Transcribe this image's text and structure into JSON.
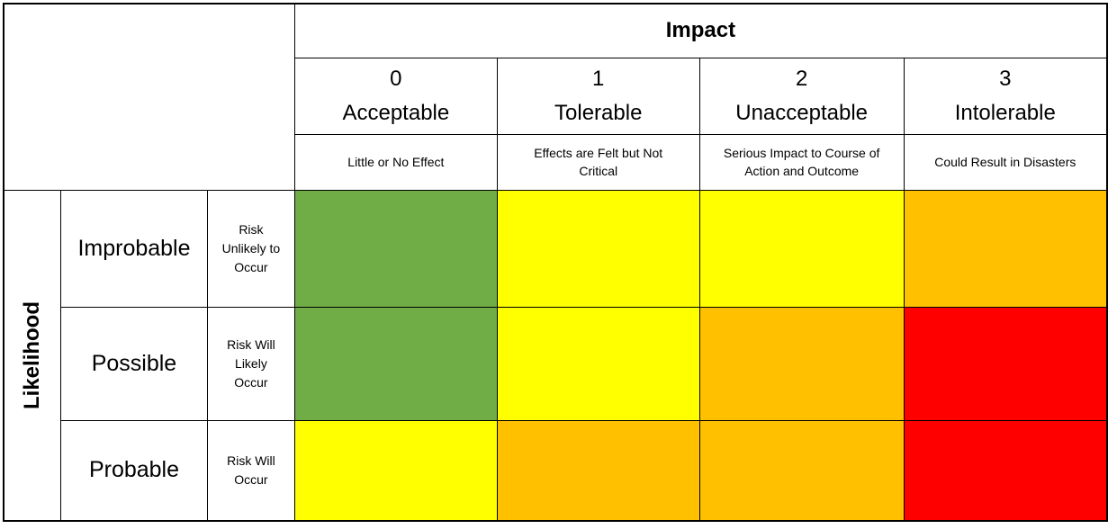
{
  "matrix": {
    "column_axis_label": "Impact",
    "row_axis_label": "Likelihood",
    "columns": [
      {
        "value": "0",
        "label": "Acceptable",
        "description": "Little or No Effect"
      },
      {
        "value": "1",
        "label": "Tolerable",
        "description": "Effects are Felt but Not\nCritical"
      },
      {
        "value": "2",
        "label": "Unacceptable",
        "description": "Serious Impact to Course of\nAction and Outcome"
      },
      {
        "value": "3",
        "label": "Intolerable",
        "description": "Could Result in Disasters"
      }
    ],
    "rows": [
      {
        "label": "Improbable",
        "description": "Risk\nUnlikely to\nOccur",
        "cells": [
          "#70AD47",
          "#FFFF00",
          "#FFFF00",
          "#FFC000"
        ]
      },
      {
        "label": "Possible",
        "description": "Risk Will\nLikely\nOccur",
        "cells": [
          "#70AD47",
          "#FFFF00",
          "#FFC000",
          "#FF0000"
        ]
      },
      {
        "label": "Probable",
        "description": "Risk Will\nOccur",
        "cells": [
          "#FFFF00",
          "#FFC000",
          "#FFC000",
          "#FF0000"
        ]
      }
    ]
  },
  "colors": {
    "green": "#70AD47",
    "yellow": "#FFFF00",
    "orange": "#FFC000",
    "red": "#FF0000",
    "border": "#000000",
    "background": "#FFFFFF"
  },
  "chart_data": {
    "type": "heatmap",
    "title": "",
    "x_axis_label": "Impact",
    "y_axis_label": "Likelihood",
    "x_categories": [
      "0 Acceptable",
      "1 Tolerable",
      "2 Unacceptable",
      "3 Intolerable"
    ],
    "x_category_descriptions": [
      "Little or No Effect",
      "Effects are Felt but Not Critical",
      "Serious Impact to Course of Action and Outcome",
      "Could Result in Disasters"
    ],
    "y_categories": [
      "Improbable",
      "Possible",
      "Probable"
    ],
    "y_category_descriptions": [
      "Risk Unlikely to Occur",
      "Risk Will Likely Occur",
      "Risk Will Occur"
    ],
    "cells_by_color": [
      [
        "green",
        "yellow",
        "yellow",
        "orange"
      ],
      [
        "green",
        "yellow",
        "orange",
        "red"
      ],
      [
        "yellow",
        "orange",
        "orange",
        "red"
      ]
    ],
    "legend_position": "none",
    "grid": true
  }
}
